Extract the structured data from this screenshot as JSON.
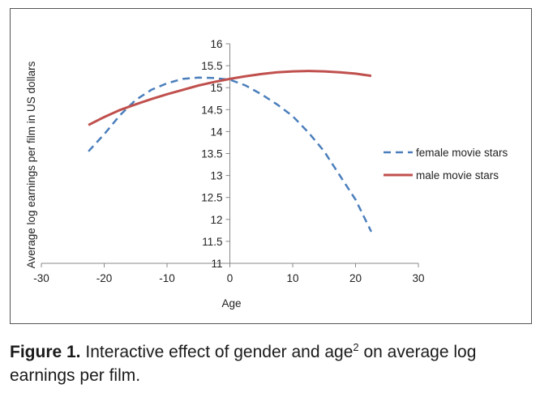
{
  "caption": {
    "label": "Figure 1.",
    "text_before_sup": "Interactive effect of gender and age",
    "sup": "2",
    "text_after_sup": " on average log earnings per film."
  },
  "chart_data": {
    "type": "line",
    "xlabel": "Age",
    "ylabel": "Average log earnings per film in US dollars",
    "xlim": [
      -30,
      30
    ],
    "ylim": [
      11,
      16
    ],
    "x_ticks": [
      -30,
      -20,
      -10,
      0,
      10,
      20,
      30
    ],
    "y_ticks": [
      11,
      11.5,
      12,
      12.5,
      13,
      13.5,
      14,
      14.5,
      15,
      15.5,
      16
    ],
    "legend_position": "right",
    "grid": false,
    "series": [
      {
        "name": "female movie stars",
        "color": "#4a7ebb",
        "style": "dashed",
        "x": [
          -22.5,
          -20,
          -17.5,
          -15,
          -12.5,
          -10,
          -7.5,
          -5,
          -2.5,
          0,
          2.5,
          5,
          7.5,
          10,
          12.5,
          15,
          17.5,
          20,
          22.5
        ],
        "y": [
          13.55,
          13.94,
          14.37,
          14.72,
          14.95,
          15.1,
          15.2,
          15.23,
          15.22,
          15.18,
          15.05,
          14.85,
          14.62,
          14.35,
          13.98,
          13.55,
          13.0,
          12.45,
          11.72
        ]
      },
      {
        "name": "male movie stars",
        "color": "#c0504d",
        "style": "solid",
        "x": [
          -22.5,
          -20,
          -17.5,
          -15,
          -12.5,
          -10,
          -7.5,
          -5,
          -2.5,
          0,
          2.5,
          5,
          7.5,
          10,
          12.5,
          15,
          17.5,
          20,
          22.5
        ],
        "y": [
          14.15,
          14.33,
          14.49,
          14.62,
          14.74,
          14.85,
          14.95,
          15.05,
          15.13,
          15.2,
          15.26,
          15.31,
          15.35,
          15.37,
          15.38,
          15.37,
          15.35,
          15.32,
          15.27
        ]
      }
    ]
  }
}
